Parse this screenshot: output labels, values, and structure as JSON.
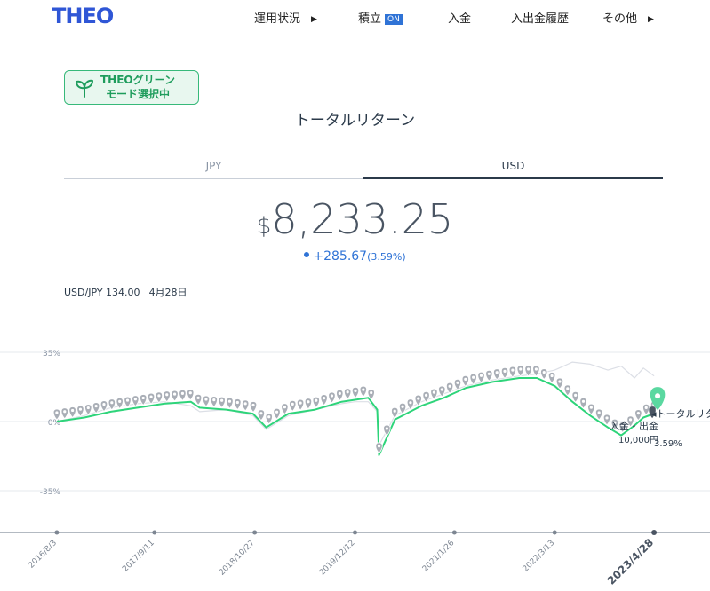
{
  "nav": {
    "logo": "THEO",
    "items": [
      {
        "label": "運用状況",
        "has_arrow": true
      },
      {
        "label": "積立",
        "badge": "ON"
      },
      {
        "label": "入金"
      },
      {
        "label": "入出金履歴"
      },
      {
        "label": "その他",
        "has_arrow": true
      }
    ]
  },
  "green_mode": {
    "line1": "THEOグリーン",
    "line2": "モード選択中"
  },
  "page_title": "トータルリターン",
  "tabs": {
    "jpy": "JPY",
    "usd": "USD",
    "active": "USD"
  },
  "total": {
    "currency": "$",
    "amount": "8,233.25"
  },
  "change": {
    "value": "+285.67",
    "percent": "(3.59%)"
  },
  "fx": {
    "text": "USD/JPY 134.00",
    "date": "4月28日"
  },
  "chart_data": {
    "type": "line",
    "ytick_labels": [
      "35%",
      "0%",
      "-35%"
    ],
    "yticks": [
      35,
      0,
      -35
    ],
    "ylim": [
      -55,
      55
    ],
    "x_labels": [
      "2016/8/3",
      "2017/9/11",
      "2018/10/27",
      "2019/12/12",
      "2021/1/26",
      "2022/3/13",
      "2023/4/28"
    ],
    "x_labels_years": [
      2016.59,
      2017.69,
      2018.82,
      2019.95,
      2021.07,
      2022.2,
      2023.32
    ],
    "xlim": [
      2015.95,
      2023.95
    ],
    "series": [
      {
        "name": "トータルリターン",
        "color": "#2ed47a",
        "x": [
          2016.59,
          2016.9,
          2017.2,
          2017.5,
          2017.8,
          2018.1,
          2018.2,
          2018.5,
          2018.8,
          2018.95,
          2019.2,
          2019.5,
          2019.8,
          2019.95,
          2020.1,
          2020.2,
          2020.22,
          2020.4,
          2020.7,
          2020.95,
          2021.2,
          2021.5,
          2021.8,
          2022.0,
          2022.2,
          2022.4,
          2022.6,
          2022.8,
          2022.95,
          2023.1,
          2023.2,
          2023.32
        ],
        "y": [
          0,
          2,
          5,
          7,
          9,
          10,
          7,
          6,
          4,
          -3,
          4,
          6,
          10,
          11,
          12,
          6,
          -17,
          1,
          8,
          12,
          17,
          20,
          22,
          22,
          18,
          10,
          3,
          -3,
          -7,
          -2,
          2,
          4
        ]
      },
      {
        "name": "",
        "color": "#dcdfe6",
        "x": [
          2016.59,
          2016.9,
          2017.2,
          2017.5,
          2017.8,
          2018.1,
          2018.2,
          2018.5,
          2018.8,
          2018.95,
          2019.2,
          2019.5,
          2019.8,
          2019.95,
          2020.1,
          2020.2,
          2020.22,
          2020.4,
          2020.7,
          2020.95,
          2021.2,
          2021.5,
          2021.8,
          2022.0,
          2022.2,
          2022.4,
          2022.6,
          2022.8,
          2022.95,
          2023.1,
          2023.2,
          2023.32
        ],
        "y": [
          0,
          3,
          7,
          9,
          10,
          8,
          5,
          6,
          3,
          -4,
          3,
          6,
          9,
          10,
          10,
          5,
          -12,
          3,
          10,
          14,
          18,
          21,
          23,
          24,
          26,
          30,
          29,
          26,
          28,
          22,
          27,
          23
        ]
      }
    ],
    "deposit_markers_count": 77,
    "end_annotations": [
      "トータルリターン",
      "3.59%",
      "入金・出金",
      "10,000円"
    ]
  }
}
